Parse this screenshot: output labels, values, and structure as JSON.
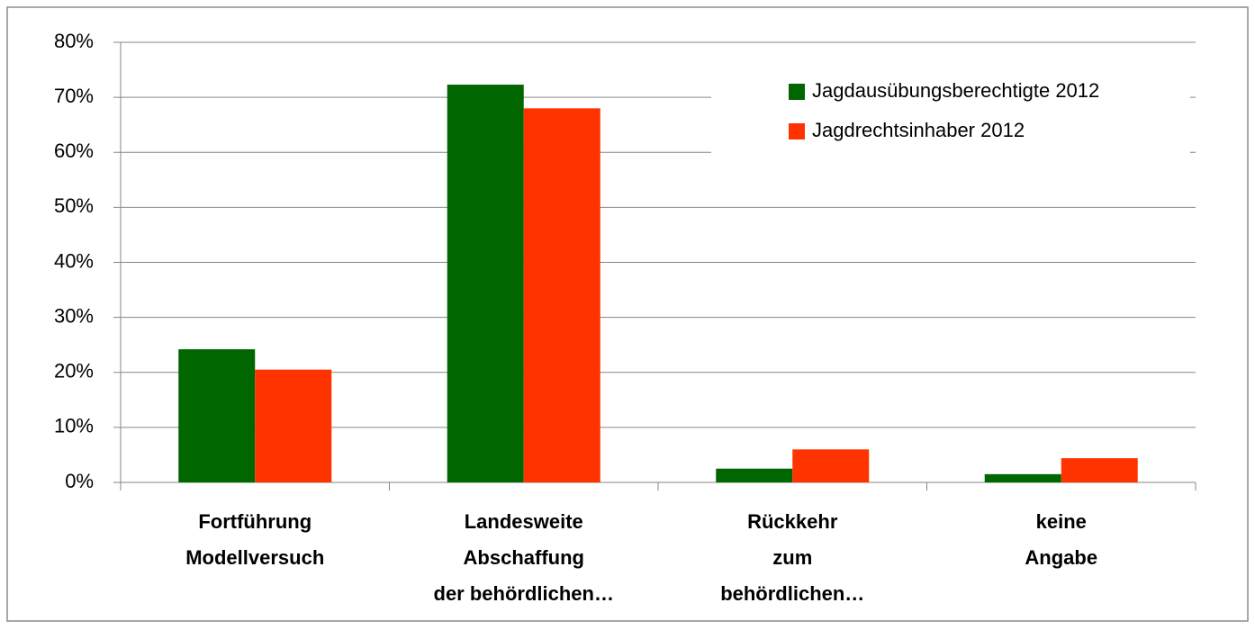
{
  "chart_data": {
    "type": "bar",
    "categories": [
      "Fortführung\nModellversuch",
      "Landesweite\nAbschaffung\nder behördlichen…",
      "Rückkehr\nzum\nbehördlichen…",
      "keine\nAngabe"
    ],
    "series": [
      {
        "name": "Jagdausübungsberechtigte 2012",
        "color": "#006600",
        "values": [
          24.2,
          72.3,
          2.5,
          1.5
        ]
      },
      {
        "name": "Jagdrechtsinhaber 2012",
        "color": "#ff3300",
        "values": [
          20.5,
          68,
          6,
          4.4
        ]
      }
    ],
    "ylim": [
      0,
      80
    ],
    "yticks": [
      {
        "value": 0,
        "label": "0%"
      },
      {
        "value": 10,
        "label": "10%"
      },
      {
        "value": 20,
        "label": "20%"
      },
      {
        "value": 30,
        "label": "30%"
      },
      {
        "value": 40,
        "label": "40%"
      },
      {
        "value": 50,
        "label": "50%"
      },
      {
        "value": 60,
        "label": "60%"
      },
      {
        "value": 70,
        "label": "70%"
      },
      {
        "value": 80,
        "label": "80%"
      }
    ],
    "grid": true,
    "legend": "top-right"
  }
}
